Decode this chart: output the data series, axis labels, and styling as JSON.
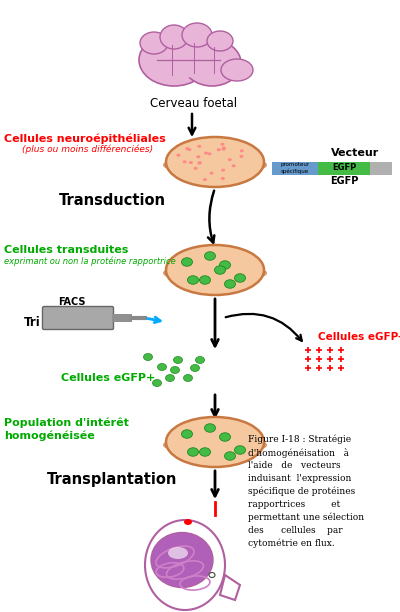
{
  "bg_color": "#ffffff",
  "cerveau_label": "Cerveau foetal",
  "neuroepitheliales_label": "Cellules neuroépithéliales",
  "neuroepitheliales_sub": "(plus ou moins différenciées)",
  "transduction_label": "Transduction",
  "vecteur_label": "Vecteur",
  "promoteur_label": "promoteur\nspécifique",
  "egfp_label": "EGFP",
  "transduites_label": "Cellules transduites",
  "transduites_sub": "exprimant ou non la protéine rapportrice",
  "facs_label": "FACS",
  "tri_label": "Tri",
  "egfp_plus_label": "Cellules eGFP+",
  "egfp_minus_label": "Cellules eGFP-",
  "population_label": "Population d'intérêt\nhomogénéisée",
  "transplantation_label": "Transplantation",
  "caption_lines": [
    "Figure I-18 : Stratégie",
    "d'homogénéisation   à",
    "l'aide   de   vecteurs",
    "induisant  l'expression",
    "spécifique de protéines",
    "rapportrices         et",
    "permettant une sélection",
    "des      cellules    par",
    "cytométrie en flux."
  ],
  "red_color": "#ff0000",
  "green_color": "#00aa00",
  "black_color": "#000000",
  "cyan_color": "#00aaff",
  "dish_fill": "#f5c8a0",
  "dish_edge": "#c87840",
  "dish_shadow": "#d4956a",
  "dish_red_dots": "#ff8888",
  "dish_green_dots": "#44bb44",
  "brain_fill": "#e8b4d8",
  "brain_edge": "#b060a0",
  "brain_dark": "#9040a0",
  "promoteur_fill": "#aaaaaa",
  "promoteur_blue": "#4488cc",
  "egfp_fill": "#44bb44",
  "facs_fill": "#a8a8a8",
  "facs_edge": "#666666",
  "head_fill": "#ffffff",
  "head_brain_fill": "#b060b8",
  "head_brain_stripe": "#d080c8",
  "injection_color": "#ff0000"
}
